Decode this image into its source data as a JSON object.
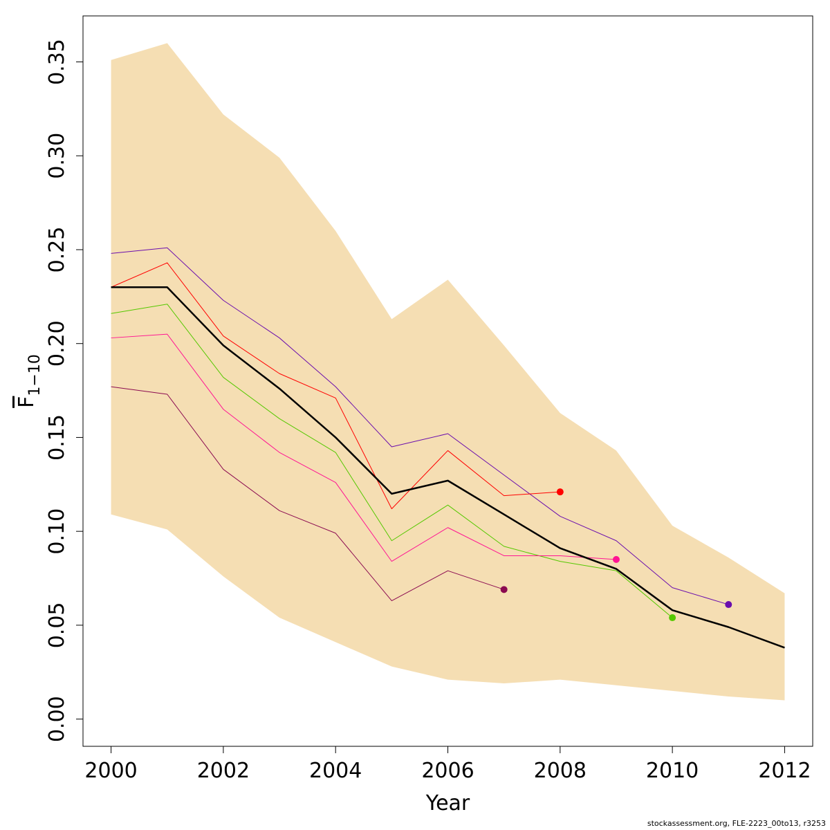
{
  "chart_data": {
    "type": "line",
    "xlabel": "Year",
    "ylabel": {
      "base": "F",
      "subscript": "1−10"
    },
    "xlim": [
      1999.5,
      2012.5
    ],
    "ylim": [
      -0.0145,
      0.3745
    ],
    "x_ticks": [
      2000,
      2002,
      2004,
      2006,
      2008,
      2010,
      2012
    ],
    "x_tick_labels": [
      "2000",
      "2002",
      "2004",
      "2006",
      "2008",
      "2010",
      "2012"
    ],
    "y_ticks": [
      0.0,
      0.05,
      0.1,
      0.15,
      0.2,
      0.25,
      0.3,
      0.35
    ],
    "y_tick_labels": [
      "0.00",
      "0.05",
      "0.10",
      "0.15",
      "0.20",
      "0.25",
      "0.30",
      "0.35"
    ],
    "grid": false,
    "band": {
      "color": "#f5deb3",
      "x": [
        2000,
        2001,
        2002,
        2003,
        2004,
        2005,
        2006,
        2007,
        2008,
        2009,
        2010,
        2011,
        2012
      ],
      "upper": [
        0.351,
        0.36,
        0.322,
        0.299,
        0.26,
        0.213,
        0.234,
        0.199,
        0.163,
        0.143,
        0.103,
        0.086,
        0.067
      ],
      "lower": [
        0.109,
        0.101,
        0.076,
        0.054,
        0.041,
        0.028,
        0.021,
        0.019,
        0.021,
        0.018,
        0.015,
        0.012,
        0.01
      ]
    },
    "series": [
      {
        "color": "#000000",
        "width": 2.5,
        "endpoint": false,
        "x": [
          2000,
          2001,
          2002,
          2003,
          2004,
          2005,
          2006,
          2007,
          2008,
          2009,
          2010,
          2011,
          2012
        ],
        "values": [
          0.23,
          0.23,
          0.199,
          0.176,
          0.15,
          0.12,
          0.127,
          0.109,
          0.091,
          0.08,
          0.058,
          0.049,
          0.038
        ]
      },
      {
        "color": "#6a0dad",
        "width": 1,
        "endpoint": true,
        "x": [
          2000,
          2001,
          2002,
          2003,
          2004,
          2005,
          2006,
          2007,
          2008,
          2009,
          2010,
          2011
        ],
        "values": [
          0.248,
          0.251,
          0.223,
          0.203,
          0.177,
          0.145,
          0.152,
          0.13,
          0.108,
          0.095,
          0.07,
          0.061
        ]
      },
      {
        "color": "#55c800",
        "width": 1,
        "endpoint": true,
        "x": [
          2000,
          2001,
          2002,
          2003,
          2004,
          2005,
          2006,
          2007,
          2008,
          2009,
          2010
        ],
        "values": [
          0.216,
          0.221,
          0.182,
          0.16,
          0.142,
          0.095,
          0.114,
          0.092,
          0.084,
          0.079,
          0.054
        ]
      },
      {
        "color": "#ff1493",
        "width": 1,
        "endpoint": true,
        "x": [
          2000,
          2001,
          2002,
          2003,
          2004,
          2005,
          2006,
          2007,
          2008,
          2009
        ],
        "values": [
          0.203,
          0.205,
          0.165,
          0.142,
          0.126,
          0.084,
          0.102,
          0.087,
          0.087,
          0.085
        ]
      },
      {
        "color": "#ff0000",
        "width": 1,
        "endpoint": true,
        "x": [
          2000,
          2001,
          2002,
          2003,
          2004,
          2005,
          2006,
          2007,
          2008
        ],
        "values": [
          0.23,
          0.243,
          0.204,
          0.184,
          0.171,
          0.112,
          0.143,
          0.119,
          0.121
        ]
      },
      {
        "color": "#8b0a50",
        "width": 1,
        "endpoint": true,
        "x": [
          2000,
          2001,
          2002,
          2003,
          2004,
          2005,
          2006,
          2007
        ],
        "values": [
          0.177,
          0.173,
          0.133,
          0.111,
          0.099,
          0.063,
          0.079,
          0.069
        ]
      }
    ]
  },
  "footer": "stockassessment.org, FLE-2223_00to13, r3253"
}
